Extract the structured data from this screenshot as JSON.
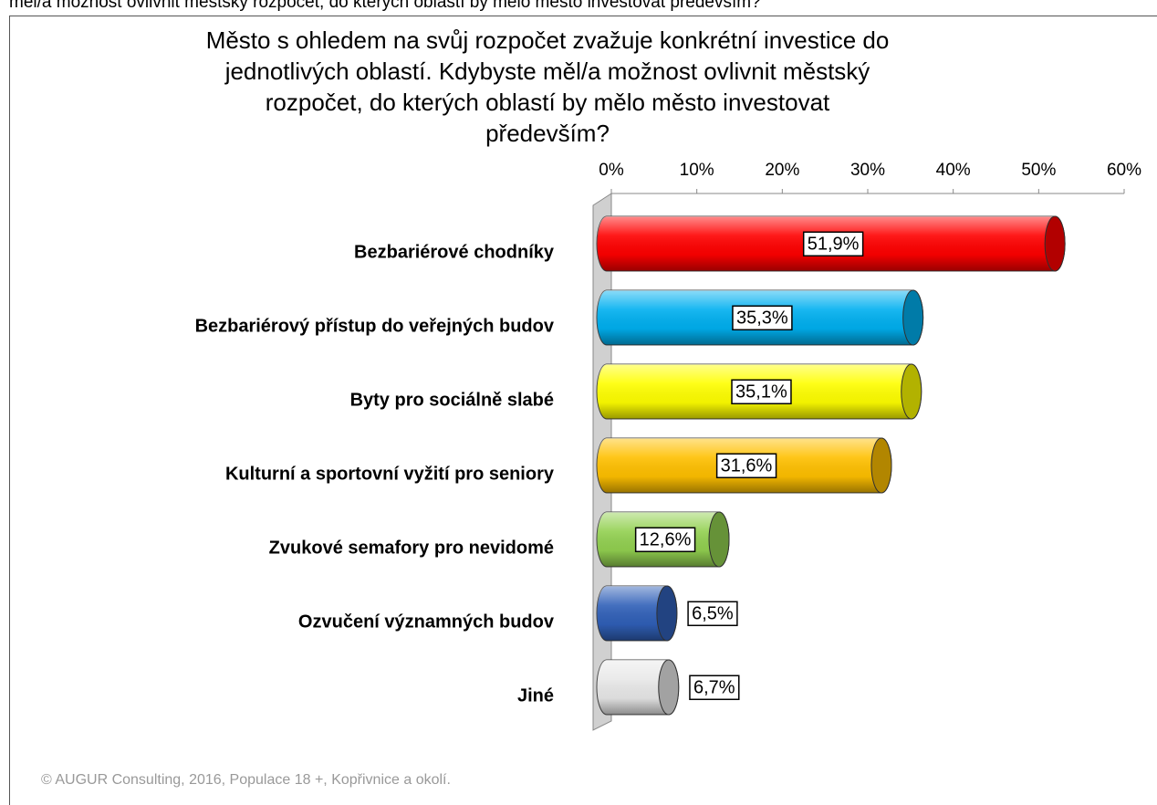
{
  "page_caption": "měl/a možnost ovlivnit městský rozpočet, do kterých oblastí by mělo město investovat především?",
  "chart_data": {
    "type": "bar",
    "orientation": "horizontal",
    "title": [
      "Město s ohledem na svůj rozpočet zvažuje konkrétní investice do",
      "jednotlivých oblastí. Kdybyste měl/a možnost ovlivnit městský",
      "rozpočet, do kterých oblastí by mělo město investovat",
      "především?"
    ],
    "categories": [
      "Bezbariérové chodníky",
      "Bezbariérový přístup do veřejných budov",
      "Byty pro sociálně slabé",
      "Kulturní a sportovní vyžití pro seniory",
      "Zvukové semafory pro nevidomé",
      "Ozvučení významných budov",
      "Jiné"
    ],
    "values": [
      51.9,
      35.3,
      35.1,
      31.6,
      12.6,
      6.5,
      6.7
    ],
    "value_labels": [
      "51,9%",
      "35,3%",
      "35,1%",
      "31,6%",
      "12,6%",
      "6,5%",
      "6,7%"
    ],
    "colors": [
      "#ff0000",
      "#00b0f0",
      "#ffff00",
      "#ffc000",
      "#92d050",
      "#3060b8",
      "#e8e8e8"
    ],
    "xlim": [
      0,
      60
    ],
    "xticks": [
      {
        "value": 0,
        "label": "0%"
      },
      {
        "value": 10,
        "label": "10%"
      },
      {
        "value": 20,
        "label": "20%"
      },
      {
        "value": 30,
        "label": "30%"
      },
      {
        "value": 40,
        "label": "40%"
      },
      {
        "value": 50,
        "label": "50%"
      },
      {
        "value": 60,
        "label": "60%"
      }
    ],
    "source": "© AUGUR Consulting, 2016, Populace 18 +, Kopřivnice a okolí."
  }
}
